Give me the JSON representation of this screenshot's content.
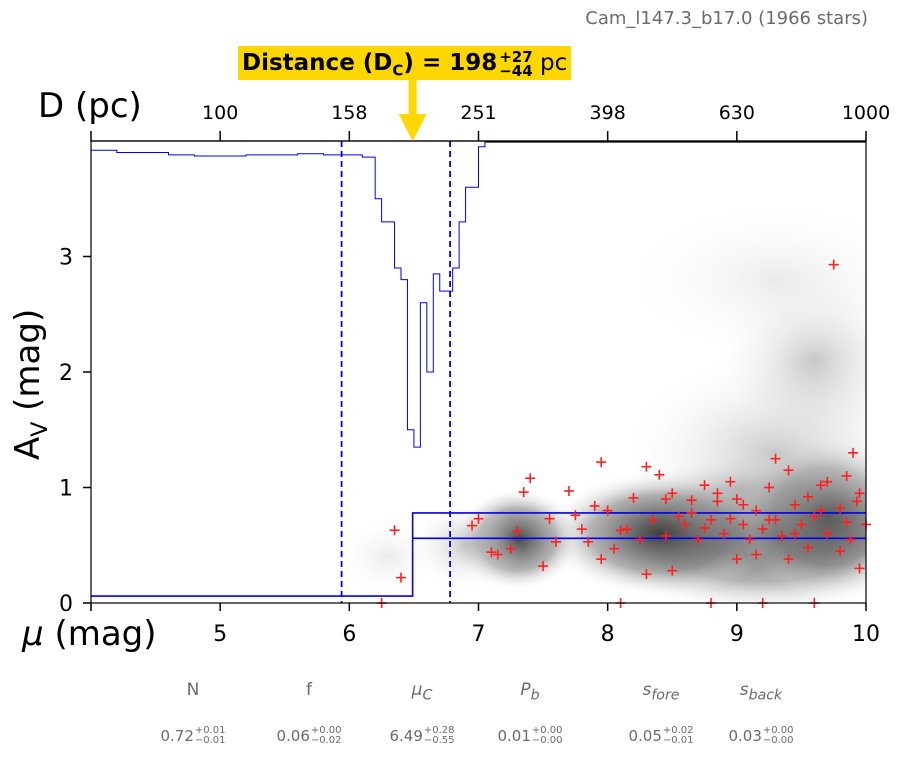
{
  "subtitle": "Cam_l147.3_b17.0 (1966 stars)",
  "distance_label": {
    "prefix": "Distance (D",
    "subscript": "C",
    "mid": ") = 198",
    "plus": "+27",
    "minus": "−44",
    "unit": "pc"
  },
  "top_axis_title": "D (pc)",
  "x_axis_title_symbol": "μ",
  "x_axis_title_unit": "(mag)",
  "y_axis_title_main": "A",
  "y_axis_title_sub": "V",
  "y_axis_title_unit": "(mag)",
  "parameters": [
    {
      "name": "N",
      "italic": false,
      "value": "0.72",
      "plus": "+0.01",
      "minus": "−0.01"
    },
    {
      "name": "f",
      "italic": false,
      "value": "0.06",
      "plus": "+0.00",
      "minus": "−0.02"
    },
    {
      "name": "μC",
      "italic": true,
      "value": "6.49",
      "plus": "+0.28",
      "minus": "−0.55"
    },
    {
      "name": "Pb",
      "italic": true,
      "value": "0.01",
      "plus": "+0.00",
      "minus": "−0.00"
    },
    {
      "name": "sfore",
      "italic": true,
      "value": "0.05",
      "plus": "+0.02",
      "minus": "−0.01"
    },
    {
      "name": "sback",
      "italic": true,
      "value": "0.03",
      "plus": "+0.00",
      "minus": "−0.00"
    }
  ],
  "chart_data": {
    "type": "scatter",
    "xlabel": "μ (mag)",
    "ylabel": "AV (mag)",
    "xlim": [
      4,
      10
    ],
    "ylim": [
      0,
      4
    ],
    "x_ticks": [
      5,
      6,
      7,
      8,
      9,
      10
    ],
    "y_ticks": [
      0,
      1,
      2,
      3
    ],
    "top_axis": {
      "label": "D (pc)",
      "ticks_mu": [
        5,
        6,
        7,
        8,
        9,
        10
      ],
      "tick_labels": [
        "100",
        "158",
        "251",
        "398",
        "630",
        "1000"
      ]
    },
    "distance_marker_mu": 6.49,
    "confidence_lines_mu": [
      5.94,
      6.78
    ],
    "extinction_model": {
      "foreground_av": 0.06,
      "step_mu": 6.49,
      "background_av_low": 0.56,
      "background_av_high": 0.78
    },
    "probability_curve": {
      "note_scale": "relative",
      "mu": [
        4.0,
        4.2,
        4.4,
        4.6,
        4.8,
        5.0,
        5.2,
        5.4,
        5.6,
        5.8,
        5.95,
        6.1,
        6.2,
        6.25,
        6.3,
        6.35,
        6.4,
        6.45,
        6.5,
        6.55,
        6.6,
        6.65,
        6.7,
        6.75,
        6.8,
        6.85,
        6.9,
        7.0,
        7.05
      ],
      "av": [
        3.92,
        3.9,
        3.9,
        3.88,
        3.87,
        3.87,
        3.88,
        3.88,
        3.89,
        3.88,
        3.88,
        3.86,
        3.5,
        3.3,
        3.3,
        2.9,
        2.8,
        1.5,
        1.35,
        2.6,
        2.0,
        2.85,
        2.7,
        2.7,
        2.9,
        3.3,
        3.6,
        3.95,
        4.0
      ]
    },
    "stars": {
      "color": "#ff2020",
      "points": [
        [
          6.35,
          0.63
        ],
        [
          6.4,
          0.22
        ],
        [
          6.25,
          0.0
        ],
        [
          6.95,
          0.67
        ],
        [
          7.0,
          0.73
        ],
        [
          7.1,
          0.44
        ],
        [
          7.15,
          0.42
        ],
        [
          7.25,
          0.47
        ],
        [
          7.3,
          0.62
        ],
        [
          7.35,
          0.96
        ],
        [
          7.4,
          1.08
        ],
        [
          7.5,
          0.32
        ],
        [
          7.55,
          0.73
        ],
        [
          7.6,
          0.53
        ],
        [
          7.7,
          0.97
        ],
        [
          7.75,
          0.76
        ],
        [
          7.8,
          0.64
        ],
        [
          7.85,
          0.53
        ],
        [
          7.9,
          0.84
        ],
        [
          7.95,
          1.22
        ],
        [
          8.0,
          0.8
        ],
        [
          8.05,
          0.47
        ],
        [
          8.1,
          0.63
        ],
        [
          8.15,
          0.64
        ],
        [
          8.2,
          0.91
        ],
        [
          8.25,
          0.55
        ],
        [
          8.3,
          1.18
        ],
        [
          8.35,
          0.72
        ],
        [
          8.4,
          1.11
        ],
        [
          8.45,
          0.58
        ],
        [
          8.5,
          0.95
        ],
        [
          8.55,
          0.75
        ],
        [
          8.6,
          0.68
        ],
        [
          8.65,
          0.89
        ],
        [
          8.7,
          0.55
        ],
        [
          8.75,
          1.02
        ],
        [
          8.8,
          0.72
        ],
        [
          8.85,
          0.88
        ],
        [
          8.9,
          0.6
        ],
        [
          8.95,
          0.73
        ],
        [
          9.0,
          0.9
        ],
        [
          9.05,
          0.68
        ],
        [
          9.1,
          0.55
        ],
        [
          9.15,
          0.8
        ],
        [
          9.2,
          0.64
        ],
        [
          9.25,
          1.0
        ],
        [
          9.3,
          0.72
        ],
        [
          9.35,
          0.58
        ],
        [
          9.4,
          1.15
        ],
        [
          9.45,
          0.85
        ],
        [
          9.5,
          0.68
        ],
        [
          9.55,
          0.92
        ],
        [
          9.6,
          0.75
        ],
        [
          9.65,
          1.02
        ],
        [
          9.7,
          0.6
        ],
        [
          9.75,
          2.93
        ],
        [
          9.8,
          0.82
        ],
        [
          9.85,
          0.7
        ],
        [
          9.9,
          1.3
        ],
        [
          9.95,
          0.95
        ],
        [
          10.0,
          0.68
        ],
        [
          9.88,
          0.55
        ],
        [
          9.93,
          0.88
        ],
        [
          9.6,
          0.0
        ],
        [
          9.2,
          0.0
        ],
        [
          8.8,
          0.0
        ],
        [
          8.3,
          0.25
        ],
        [
          8.1,
          0.0
        ],
        [
          9.0,
          0.38
        ],
        [
          9.4,
          0.38
        ],
        [
          9.8,
          0.45
        ],
        [
          9.95,
          0.3
        ],
        [
          8.65,
          0.78
        ],
        [
          8.95,
          1.05
        ],
        [
          9.3,
          1.25
        ],
        [
          9.7,
          1.05
        ],
        [
          7.95,
          0.38
        ],
        [
          8.5,
          0.28
        ],
        [
          9.55,
          0.48
        ],
        [
          9.15,
          0.42
        ],
        [
          8.85,
          0.95
        ],
        [
          9.65,
          0.8
        ],
        [
          9.45,
          0.6
        ],
        [
          9.85,
          1.1
        ],
        [
          9.05,
          0.85
        ],
        [
          8.75,
          0.65
        ],
        [
          8.45,
          0.9
        ],
        [
          9.25,
          0.72
        ]
      ]
    },
    "density_shading": "gray"
  }
}
